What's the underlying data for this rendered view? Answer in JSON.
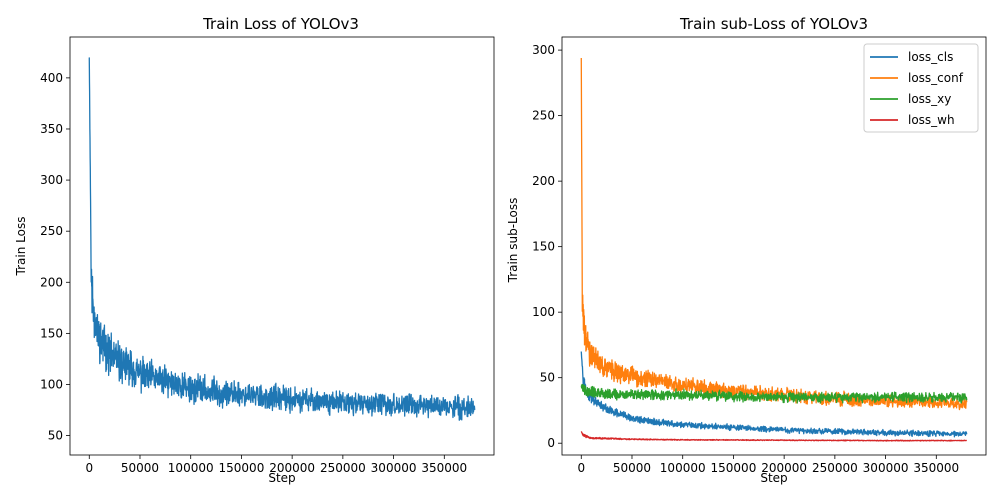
{
  "chart_data": [
    {
      "type": "line",
      "title": "Train Loss of YOLOv3",
      "xlabel": "Step",
      "ylabel": "Train Loss",
      "xlim": [
        -19000,
        399000
      ],
      "ylim": [
        31,
        440
      ],
      "xticks": [
        0,
        50000,
        100000,
        150000,
        200000,
        250000,
        300000,
        350000
      ],
      "xtick_labels": [
        "0",
        "50000",
        "100000",
        "150000",
        "200000",
        "250000",
        "300000",
        "350000"
      ],
      "yticks": [
        50,
        100,
        150,
        200,
        250,
        300,
        350,
        400
      ],
      "ytick_labels": [
        "50",
        "100",
        "150",
        "200",
        "250",
        "300",
        "350",
        "400"
      ],
      "series": [
        {
          "color": "#1f77b4",
          "x": [
            0,
            2000,
            5000,
            10000,
            20000,
            30000,
            50000,
            75000,
            100000,
            150000,
            200000,
            250000,
            300000,
            350000,
            380000
          ],
          "y": [
            420,
            200,
            165,
            145,
            130,
            122,
            110,
            103,
            96,
            90,
            85,
            82,
            80,
            78,
            77
          ],
          "noise": [
            0,
            22,
            22,
            20,
            18,
            17,
            15,
            14,
            13,
            12,
            11,
            10,
            10,
            10,
            10
          ]
        }
      ]
    },
    {
      "type": "line",
      "title": "Train sub-Loss of YOLOv3",
      "xlabel": "Step",
      "ylabel": "Train sub-Loss",
      "xlim": [
        -19000,
        399000
      ],
      "ylim": [
        -9,
        310
      ],
      "xticks": [
        0,
        50000,
        100000,
        150000,
        200000,
        250000,
        300000,
        350000
      ],
      "xtick_labels": [
        "0",
        "50000",
        "100000",
        "150000",
        "200000",
        "250000",
        "300000",
        "350000"
      ],
      "yticks": [
        0,
        50,
        100,
        150,
        200,
        250,
        300
      ],
      "ytick_labels": [
        "0",
        "50",
        "100",
        "150",
        "200",
        "250",
        "300"
      ],
      "legend_position": "top-right",
      "series": [
        {
          "name": "loss_cls",
          "color": "#1f77b4",
          "x": [
            0,
            2000,
            5000,
            10000,
            20000,
            30000,
            50000,
            75000,
            100000,
            150000,
            200000,
            250000,
            300000,
            350000,
            380000
          ],
          "y": [
            70,
            48,
            40,
            34,
            28,
            24,
            19,
            16,
            14,
            12,
            10,
            9,
            8,
            7.5,
            7
          ],
          "noise": [
            0,
            5,
            4,
            3.5,
            3,
            3,
            2.5,
            2.5,
            2,
            2,
            2,
            2,
            2,
            2,
            2
          ]
        },
        {
          "name": "loss_conf",
          "color": "#ff7f0e",
          "x": [
            0,
            1000,
            3000,
            8000,
            20000,
            40000,
            70000,
            100000,
            150000,
            200000,
            250000,
            300000,
            350000,
            380000
          ],
          "y": [
            294,
            110,
            85,
            70,
            60,
            53,
            48,
            44,
            40,
            37,
            34,
            32,
            31,
            30
          ],
          "noise": [
            0,
            12,
            10,
            9,
            8,
            7,
            6,
            6,
            5,
            5,
            5,
            4,
            4,
            4
          ]
        },
        {
          "name": "loss_xy",
          "color": "#2ca02c",
          "x": [
            0,
            5000,
            20000,
            50000,
            100000,
            150000,
            200000,
            250000,
            300000,
            350000,
            380000
          ],
          "y": [
            43,
            40,
            38,
            37,
            37,
            36,
            35,
            35,
            35,
            35,
            35
          ],
          "noise": [
            3,
            3.5,
            3.5,
            3.5,
            3.5,
            3.5,
            3.5,
            3.5,
            3.5,
            3.5,
            3.5
          ]
        },
        {
          "name": "loss_wh",
          "color": "#d62728",
          "x": [
            0,
            2000,
            10000,
            50000,
            100000,
            200000,
            300000,
            380000
          ],
          "y": [
            9,
            6,
            4,
            3,
            2.6,
            2.3,
            2,
            2
          ],
          "noise": [
            0,
            1,
            0.6,
            0.4,
            0.3,
            0.3,
            0.3,
            0.3
          ]
        }
      ]
    }
  ]
}
